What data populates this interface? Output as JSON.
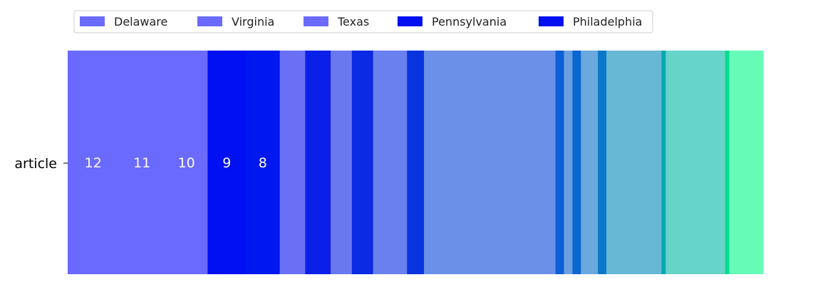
{
  "chart_data": {
    "type": "bar",
    "orientation": "horizontal",
    "stacked": true,
    "category_axis_label": "article",
    "legend": {
      "placement": "top",
      "entries": [
        {
          "name": "Delaware",
          "color": "#6a6aff"
        },
        {
          "name": "Virginia",
          "color": "#6a6aff"
        },
        {
          "name": "Texas",
          "color": "#6a6aff"
        },
        {
          "name": "Pennsylvania",
          "color": "#0010f0"
        },
        {
          "name": "Philadelphia",
          "color": "#0010f0"
        }
      ]
    },
    "series": [
      {
        "value": 12,
        "color": "#6a6aff",
        "label": "12"
      },
      {
        "value": 11,
        "color": "#6a6aff",
        "label": "11"
      },
      {
        "value": 10,
        "color": "#6a6aff",
        "label": "10"
      },
      {
        "value": 9,
        "color": "#0010f2",
        "label": "9"
      },
      {
        "value": 8,
        "color": "#0018f0",
        "label": "8"
      },
      {
        "value": 6,
        "color": "#6a70f4",
        "label": ""
      },
      {
        "value": 6,
        "color": "#0a20e8",
        "label": ""
      },
      {
        "value": 5,
        "color": "#6a78f0",
        "label": ""
      },
      {
        "value": 5,
        "color": "#0a2ae4",
        "label": ""
      },
      {
        "value": 8,
        "color": "#6a80ee",
        "label": ""
      },
      {
        "value": 4,
        "color": "#0a34de",
        "label": ""
      },
      {
        "value": 31,
        "color": "#6a90e8",
        "label": ""
      },
      {
        "value": 2,
        "color": "#0a60d4",
        "label": ""
      },
      {
        "value": 2,
        "color": "#6aa0e0",
        "label": ""
      },
      {
        "value": 2,
        "color": "#0a66d0",
        "label": ""
      },
      {
        "value": 4,
        "color": "#6aa8de",
        "label": ""
      },
      {
        "value": 2,
        "color": "#0a78c8",
        "label": ""
      },
      {
        "value": 13,
        "color": "#66b8d4",
        "label": ""
      },
      {
        "value": 1,
        "color": "#08a8b0",
        "label": ""
      },
      {
        "value": 14,
        "color": "#66d4c8",
        "label": ""
      },
      {
        "value": 1,
        "color": "#0adc90",
        "label": ""
      },
      {
        "value": 8,
        "color": "#66fcb8",
        "label": ""
      }
    ],
    "xlim": [
      0,
      171
    ]
  }
}
